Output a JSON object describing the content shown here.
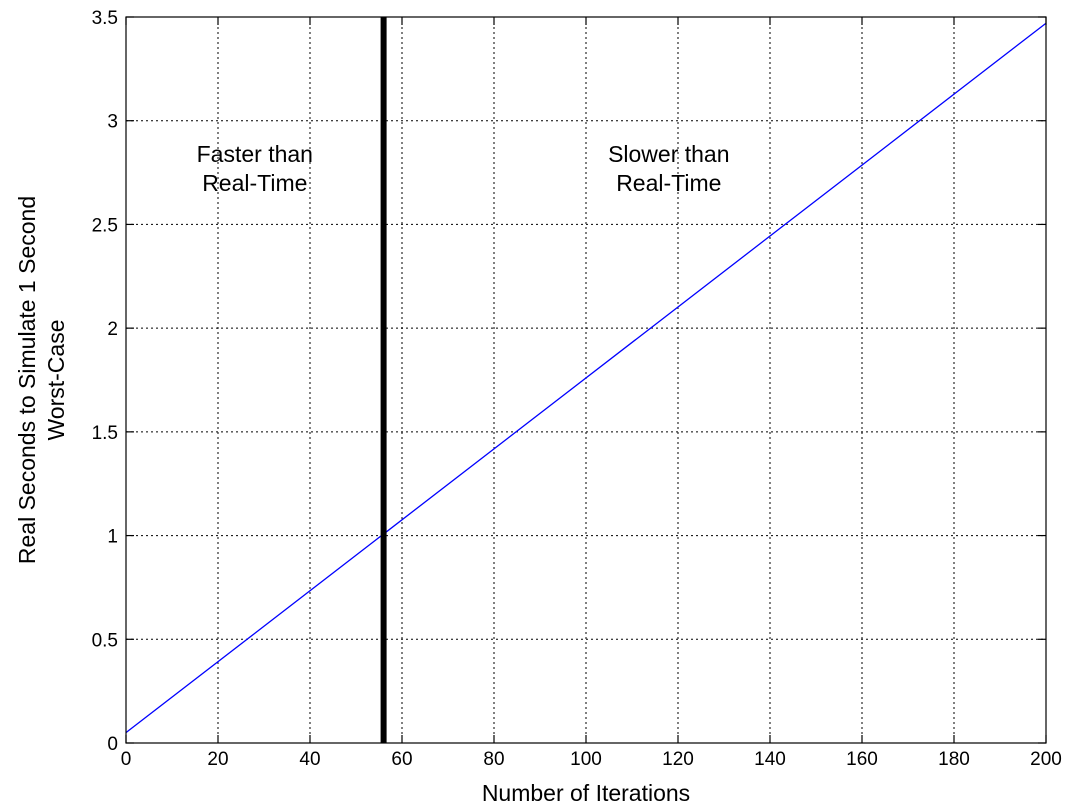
{
  "chart_data": {
    "type": "line",
    "title": "",
    "xlabel": "Number of Iterations",
    "ylabel": [
      "Real Seconds to Simulate 1 Second",
      "Worst-Case"
    ],
    "xlim": [
      0,
      200
    ],
    "ylim": [
      0,
      3.5
    ],
    "xticks": [
      0,
      20,
      40,
      60,
      80,
      100,
      120,
      140,
      160,
      180,
      200
    ],
    "yticks": [
      0,
      0.5,
      1,
      1.5,
      2,
      2.5,
      3,
      3.5
    ],
    "xtick_labels": [
      "0",
      "20",
      "40",
      "60",
      "80",
      "100",
      "120",
      "140",
      "160",
      "180",
      "200"
    ],
    "ytick_labels": [
      "0",
      "0.5",
      "1",
      "1.5",
      "2",
      "2.5",
      "3",
      "3.5"
    ],
    "grid": true,
    "series": [
      {
        "color": "#0000ff",
        "x": [
          0,
          200
        ],
        "y": [
          0.05,
          3.47
        ]
      }
    ],
    "threshold_line": {
      "x": 56,
      "color": "#000000"
    },
    "annotations": [
      {
        "lines": [
          "Faster than",
          "Real-Time"
        ],
        "x": 28,
        "y": 2.8
      },
      {
        "lines": [
          "Slower than",
          "Real-Time"
        ],
        "x": 118,
        "y": 2.8
      }
    ]
  }
}
